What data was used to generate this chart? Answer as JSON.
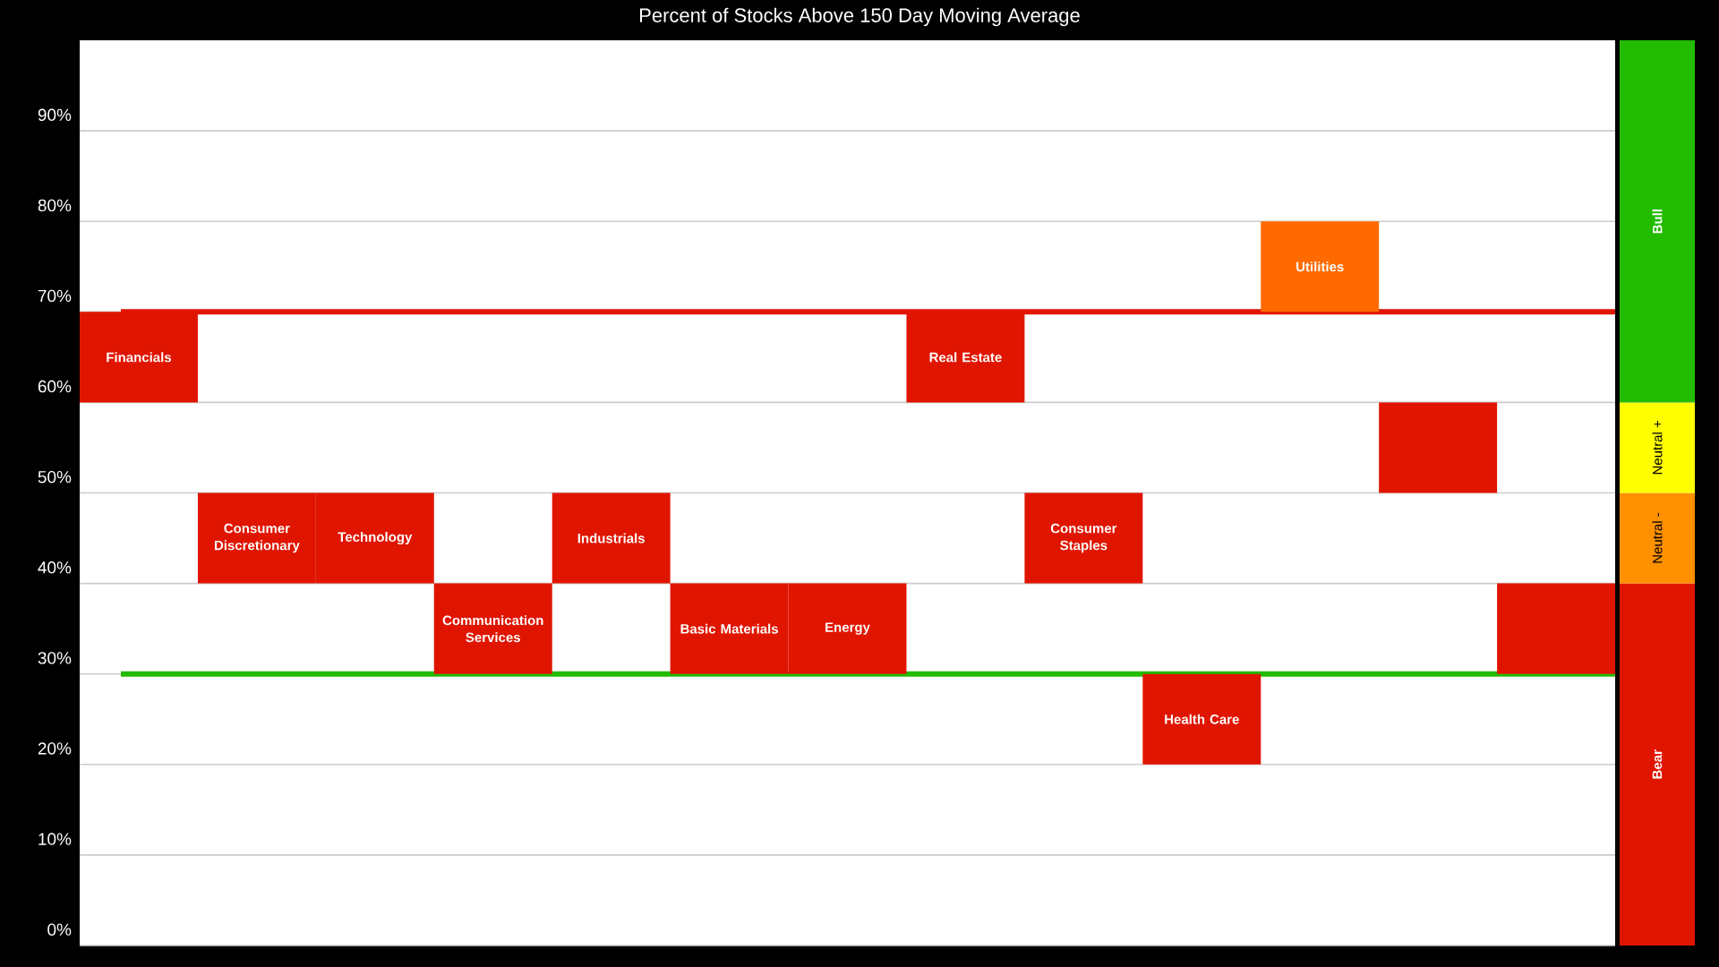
{
  "chart_data": [
    {
      "type": "bar",
      "title": "Percent of Stocks Above 150 Day Moving Average",
      "categories": [
        "Financials",
        "Consumer Discretionary",
        "Technology",
        "Communication Services",
        "Industrials",
        "Basic Materials",
        "Energy",
        "Real Estate",
        "Consumer Staples",
        "Health Care",
        "Utilities",
        null,
        null
      ],
      "values": [
        10,
        10,
        10,
        10,
        10,
        10,
        10,
        10,
        10,
        10,
        10,
        10,
        10
      ],
      "base": [
        60,
        40,
        40,
        30,
        40,
        30,
        30,
        60,
        40,
        20,
        70,
        50,
        30
      ],
      "colors": [
        "#e01500",
        "#e01500",
        "#e01500",
        "#e01500",
        "#e01500",
        "#e01500",
        "#e01500",
        "#e01500",
        "#e01500",
        "#e01500",
        "#ff6a00",
        "#e01500",
        "#e01500"
      ],
      "ylim": [
        0,
        100
      ],
      "yticks": [
        {
          "value": 0,
          "label": "0%"
        },
        {
          "value": 10,
          "label": "10%"
        },
        {
          "value": 20,
          "label": "20%"
        },
        {
          "value": 30,
          "label": "30%"
        },
        {
          "value": 40,
          "label": "40%"
        },
        {
          "value": 50,
          "label": "50%"
        },
        {
          "value": 60,
          "label": "60%"
        },
        {
          "value": 70,
          "label": "70%"
        },
        {
          "value": 80,
          "label": "80%"
        },
        {
          "value": 90,
          "label": "90%"
        }
      ],
      "ref_lines": [
        {
          "axis": "y",
          "value": 70,
          "color": "#e01500"
        },
        {
          "axis": "y",
          "value": 30,
          "color": "#22bb00"
        }
      ],
      "grid": true,
      "tick_labels": "y"
    },
    {
      "type": "bar",
      "stacked": true,
      "categories": [
        null
      ],
      "ylim": [
        0,
        100
      ],
      "tick_labels": false,
      "series": [
        {
          "name": "Bear",
          "color": "#e01500",
          "values": [
            40
          ]
        },
        {
          "name": "Neutral -",
          "color": "#ff9000",
          "values": [
            10
          ]
        },
        {
          "name": "Neutral +",
          "color": "#ffff00",
          "values": [
            10
          ]
        },
        {
          "name": "Bull",
          "color": "#22bb00",
          "values": [
            40
          ]
        }
      ]
    }
  ]
}
